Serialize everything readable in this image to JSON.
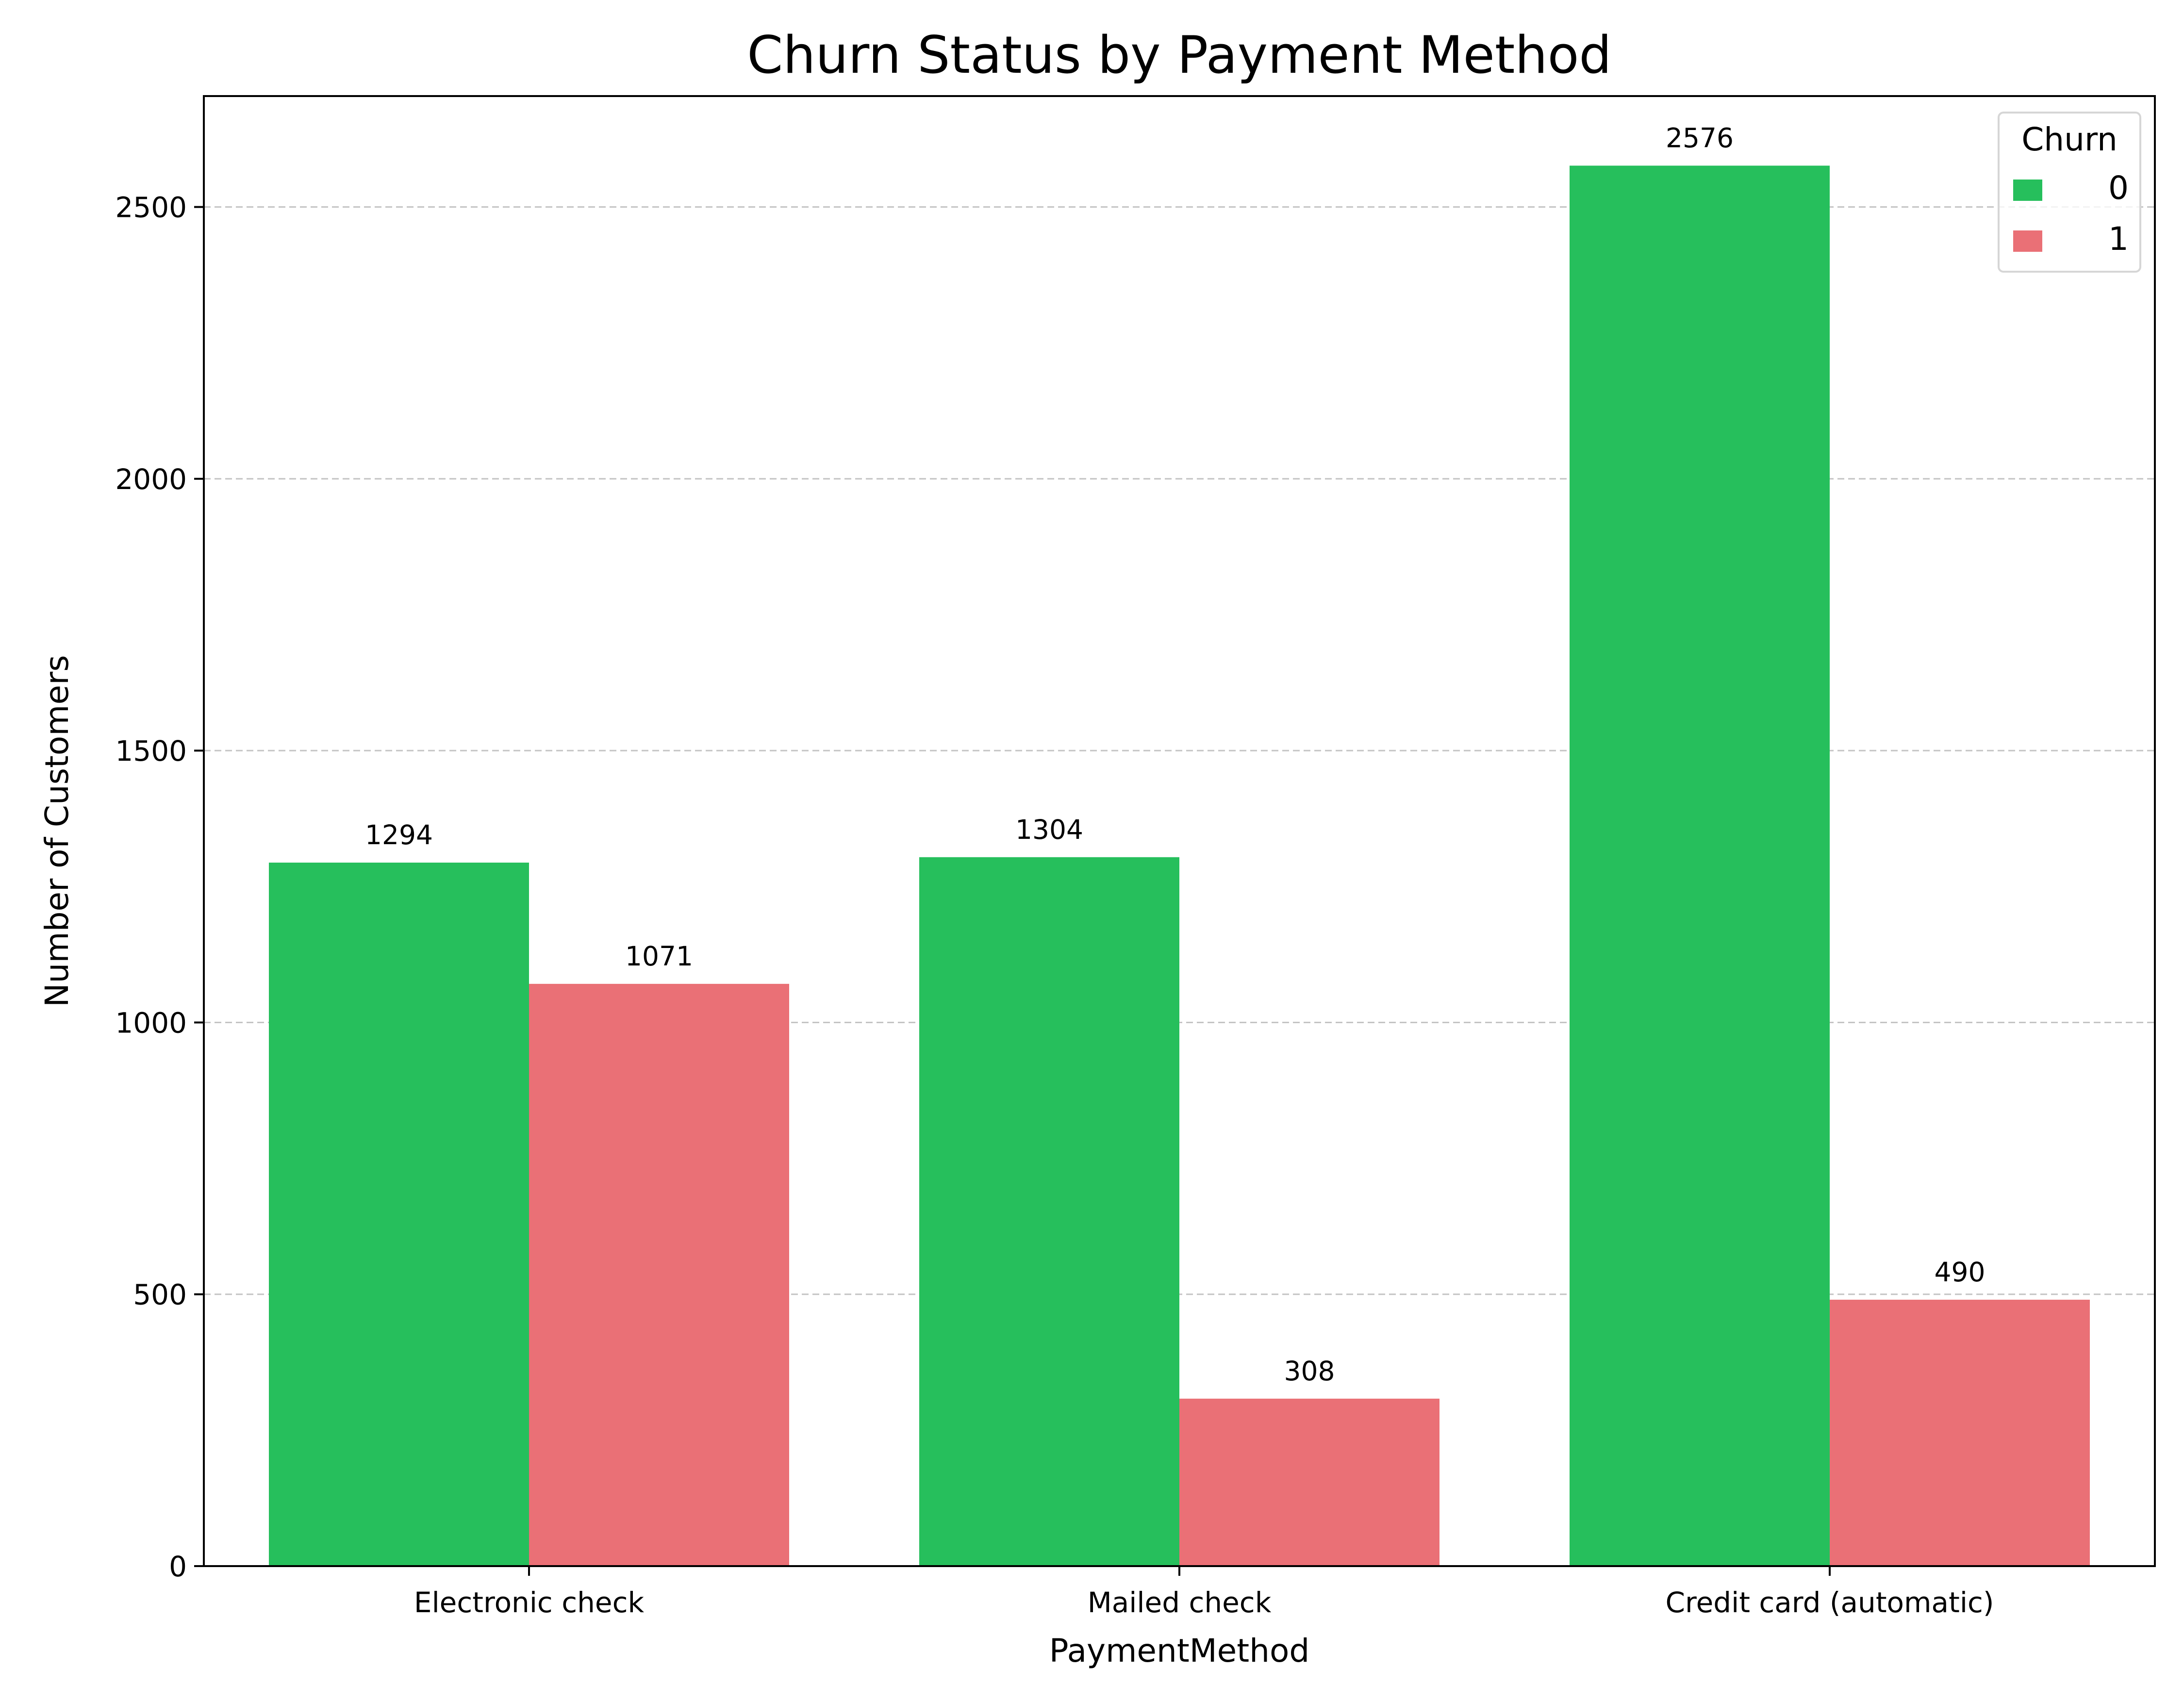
{
  "chart_data": {
    "type": "bar",
    "title": "Churn Status by Payment Method",
    "xlabel": "PaymentMethod",
    "ylabel": "Number of Customers",
    "categories": [
      "Electronic check",
      "Mailed check",
      "Credit card (automatic)"
    ],
    "series": [
      {
        "name": "0",
        "values": [
          1294,
          1304,
          2576
        ],
        "color": "#26bf5c"
      },
      {
        "name": "1",
        "values": [
          1071,
          308,
          490
        ],
        "color": "#ea7076"
      }
    ],
    "data_labels": true,
    "ylim": [
      0,
      2704
    ],
    "yticks": [
      0,
      500,
      1000,
      1500,
      2000,
      2500
    ],
    "grid": {
      "y": true,
      "style": "dashed",
      "color": "#c4c4c4"
    },
    "legend": {
      "title": "Churn",
      "placement": "top-right"
    }
  }
}
